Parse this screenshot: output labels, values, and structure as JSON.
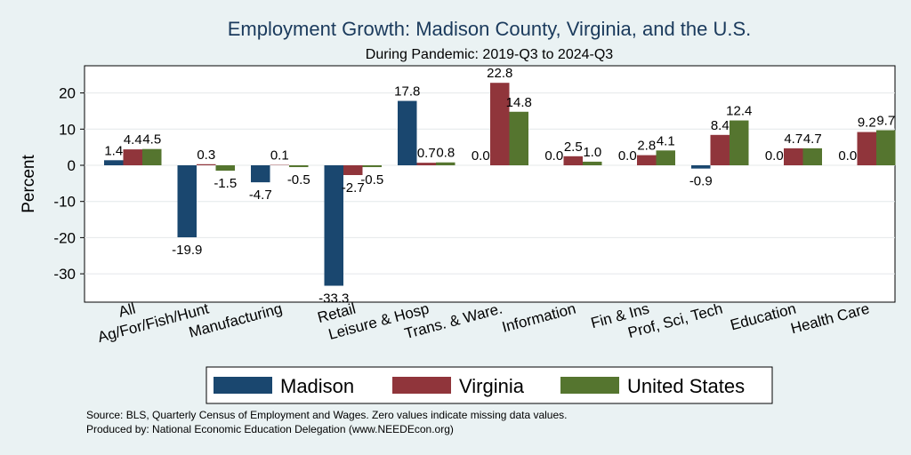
{
  "chart_data": {
    "type": "bar",
    "title": "Employment Growth: Madison County, Virginia, and the U.S.",
    "subtitle": "During Pandemic: 2019-Q3 to 2024-Q3",
    "ylabel": "Percent",
    "ylim": [
      -36,
      28
    ],
    "yticks": [
      -30,
      -20,
      -10,
      0,
      10,
      20
    ],
    "grid": true,
    "legend_position": "bottom",
    "categories": [
      "All",
      "Ag/For/Fish/Hunt",
      "Manufacturing",
      "Retail",
      "Leisure & Hosp",
      "Trans. & Ware.",
      "Information",
      "Fin & Ins",
      "Prof, Sci, Tech",
      "Education",
      "Health Care"
    ],
    "series": [
      {
        "name": "Madison",
        "color": "#1a476f",
        "values": [
          1.4,
          -19.9,
          -4.7,
          -33.3,
          17.8,
          0.0,
          0.0,
          0.0,
          -0.9,
          0.0,
          0.0
        ]
      },
      {
        "name": "Virginia",
        "color": "#90353b",
        "values": [
          4.4,
          0.3,
          0.1,
          -2.7,
          0.7,
          22.8,
          2.5,
          2.8,
          8.4,
          4.7,
          9.2
        ]
      },
      {
        "name": "United States",
        "color": "#55752f",
        "values": [
          4.5,
          -1.5,
          -0.5,
          -0.5,
          0.8,
          14.8,
          1.0,
          4.1,
          12.4,
          4.7,
          9.7
        ]
      }
    ]
  },
  "footer": {
    "source": "Source: BLS, Quarterly Census of Employment and Wages. Zero values indicate missing data values.",
    "produced": "Produced by: National Economic Education Delegation (www.NEEDEcon.org)"
  },
  "colors": {
    "background": "#eaf2f3",
    "plot_area": "#ffffff",
    "title": "#1a3a5c"
  }
}
